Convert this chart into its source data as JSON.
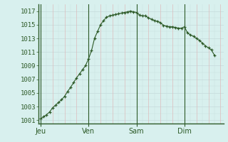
{
  "background_color": "#d8f0ee",
  "line_color": "#2d5a27",
  "marker_color": "#2d5a27",
  "grid_color_h": "#c8dede",
  "grid_color_v": "#ddbcbc",
  "day_sep_color": "#2d5a27",
  "spine_color": "#2d5a27",
  "text_color": "#2d5a27",
  "ylim": [
    1000.5,
    1018.0
  ],
  "yticks": [
    1001,
    1003,
    1005,
    1007,
    1009,
    1011,
    1013,
    1015,
    1017
  ],
  "day_labels": [
    "Jeu",
    "Ven",
    "Sam",
    "Dim"
  ],
  "day_positions": [
    0,
    8,
    16,
    24
  ],
  "xlim": [
    -0.3,
    30.5
  ],
  "x": [
    0,
    0.5,
    1,
    1.5,
    2,
    2.5,
    3,
    3.5,
    4,
    4.5,
    5,
    5.5,
    6,
    6.5,
    7,
    7.5,
    8,
    8.5,
    9,
    9.5,
    10,
    10.5,
    11,
    11.5,
    12,
    12.5,
    13,
    13.5,
    14,
    14.5,
    15,
    15.5,
    16,
    16.5,
    17,
    17.5,
    18,
    18.5,
    19,
    19.5,
    20,
    20.5,
    21,
    21.5,
    22,
    22.5,
    23,
    23.5,
    24,
    24.5,
    25,
    25.5,
    26,
    26.5,
    27,
    27.5,
    28,
    28.5,
    29
  ],
  "y": [
    1001.2,
    1001.5,
    1001.8,
    1002.2,
    1002.8,
    1003.2,
    1003.6,
    1004.0,
    1004.5,
    1005.2,
    1005.8,
    1006.5,
    1007.2,
    1007.8,
    1008.4,
    1009.0,
    1010.0,
    1011.2,
    1013.0,
    1014.0,
    1015.0,
    1015.6,
    1016.1,
    1016.3,
    1016.4,
    1016.5,
    1016.6,
    1016.7,
    1016.8,
    1016.9,
    1017.0,
    1016.9,
    1016.8,
    1016.4,
    1016.3,
    1016.3,
    1016.0,
    1015.8,
    1015.6,
    1015.5,
    1015.3,
    1014.9,
    1014.8,
    1014.7,
    1014.7,
    1014.6,
    1014.5,
    1014.5,
    1014.7,
    1013.8,
    1013.5,
    1013.3,
    1013.0,
    1012.7,
    1012.3,
    1011.9,
    1011.6,
    1011.3,
    1010.5
  ]
}
